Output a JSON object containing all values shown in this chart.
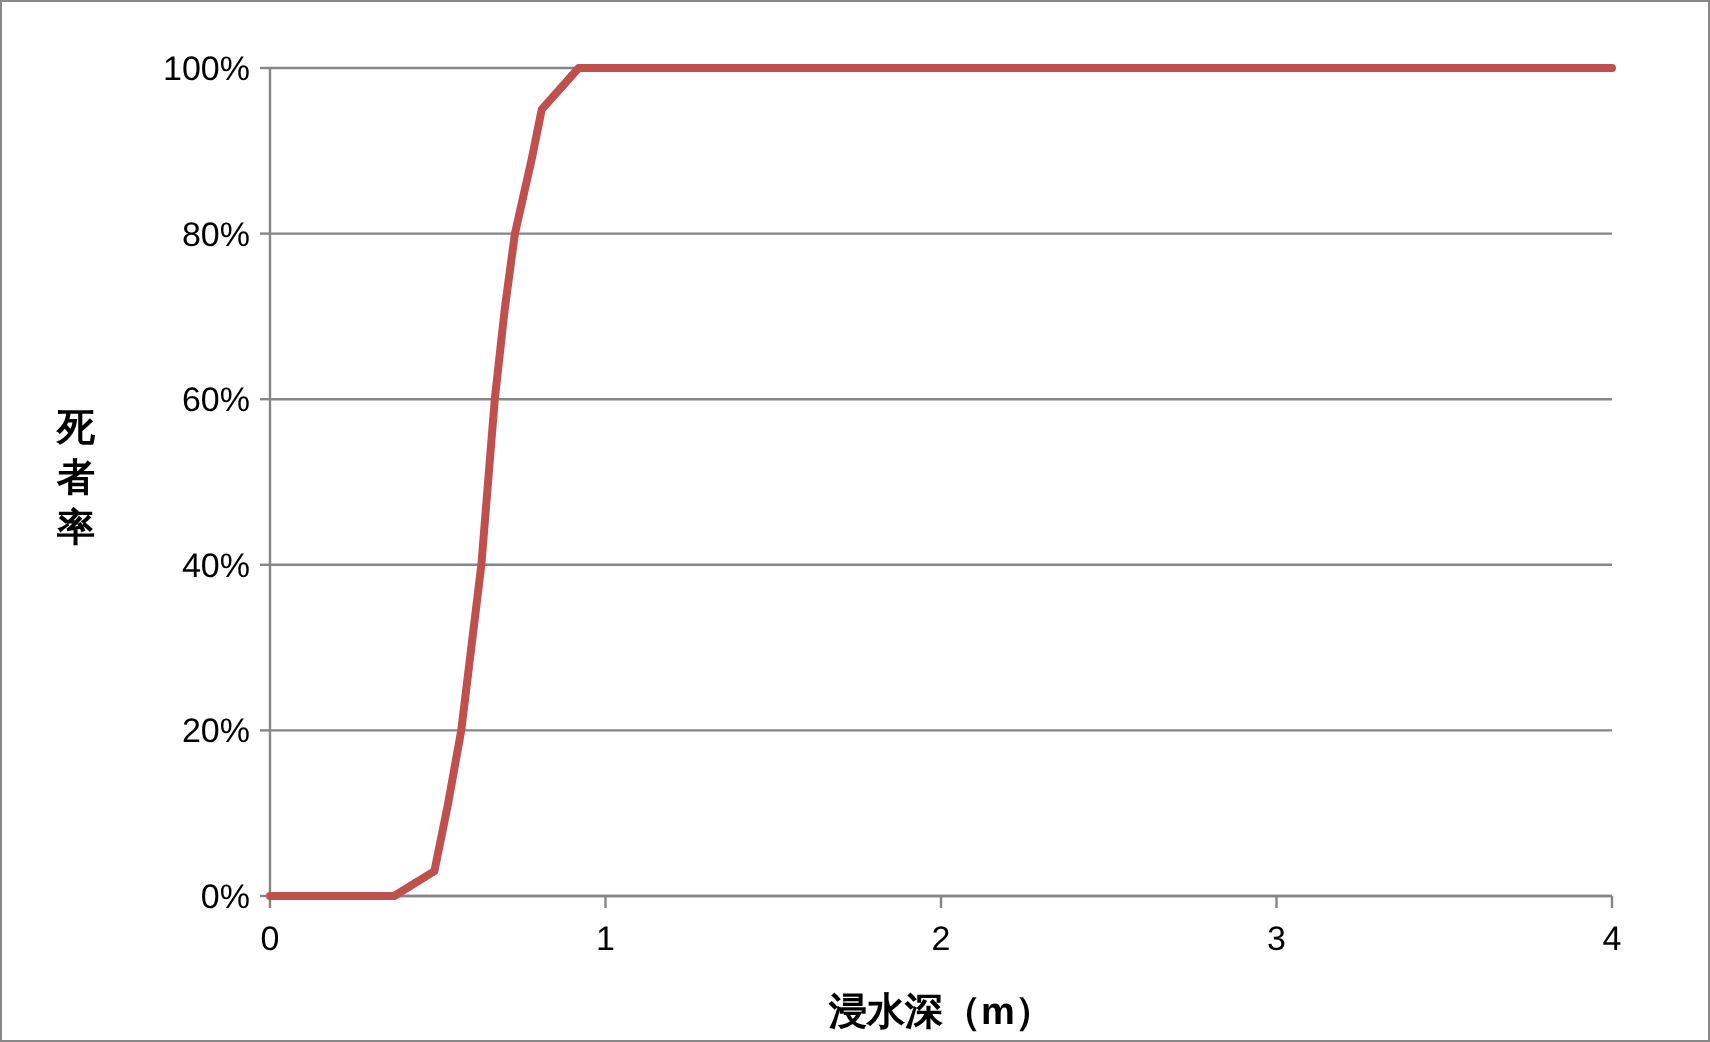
{
  "chart_data": {
    "type": "line",
    "xlabel": "浸水深（m）",
    "ylabel": "死者率",
    "series": [
      {
        "color": "#c0504d",
        "x": [
          0,
          0.37,
          0.49,
          0.53,
          0.57,
          0.63,
          0.67,
          0.7,
          0.73,
          0.78,
          0.81,
          0.92,
          4
        ],
        "values": [
          0,
          0,
          3,
          11,
          20,
          40,
          60,
          71,
          80,
          89,
          95,
          100,
          100
        ]
      }
    ],
    "xlim": [
      0,
      4
    ],
    "xticks": [
      0,
      1,
      2,
      3,
      4
    ],
    "ylim": [
      0,
      100
    ],
    "yticks": [
      {
        "value": 0,
        "label": "0%"
      },
      {
        "value": 20,
        "label": "20%"
      },
      {
        "value": 40,
        "label": "40%"
      },
      {
        "value": 60,
        "label": "60%"
      },
      {
        "value": 80,
        "label": "80%"
      },
      {
        "value": 100,
        "label": "100%"
      }
    ],
    "grid": "y",
    "marker": "none",
    "line_style": "solid"
  }
}
